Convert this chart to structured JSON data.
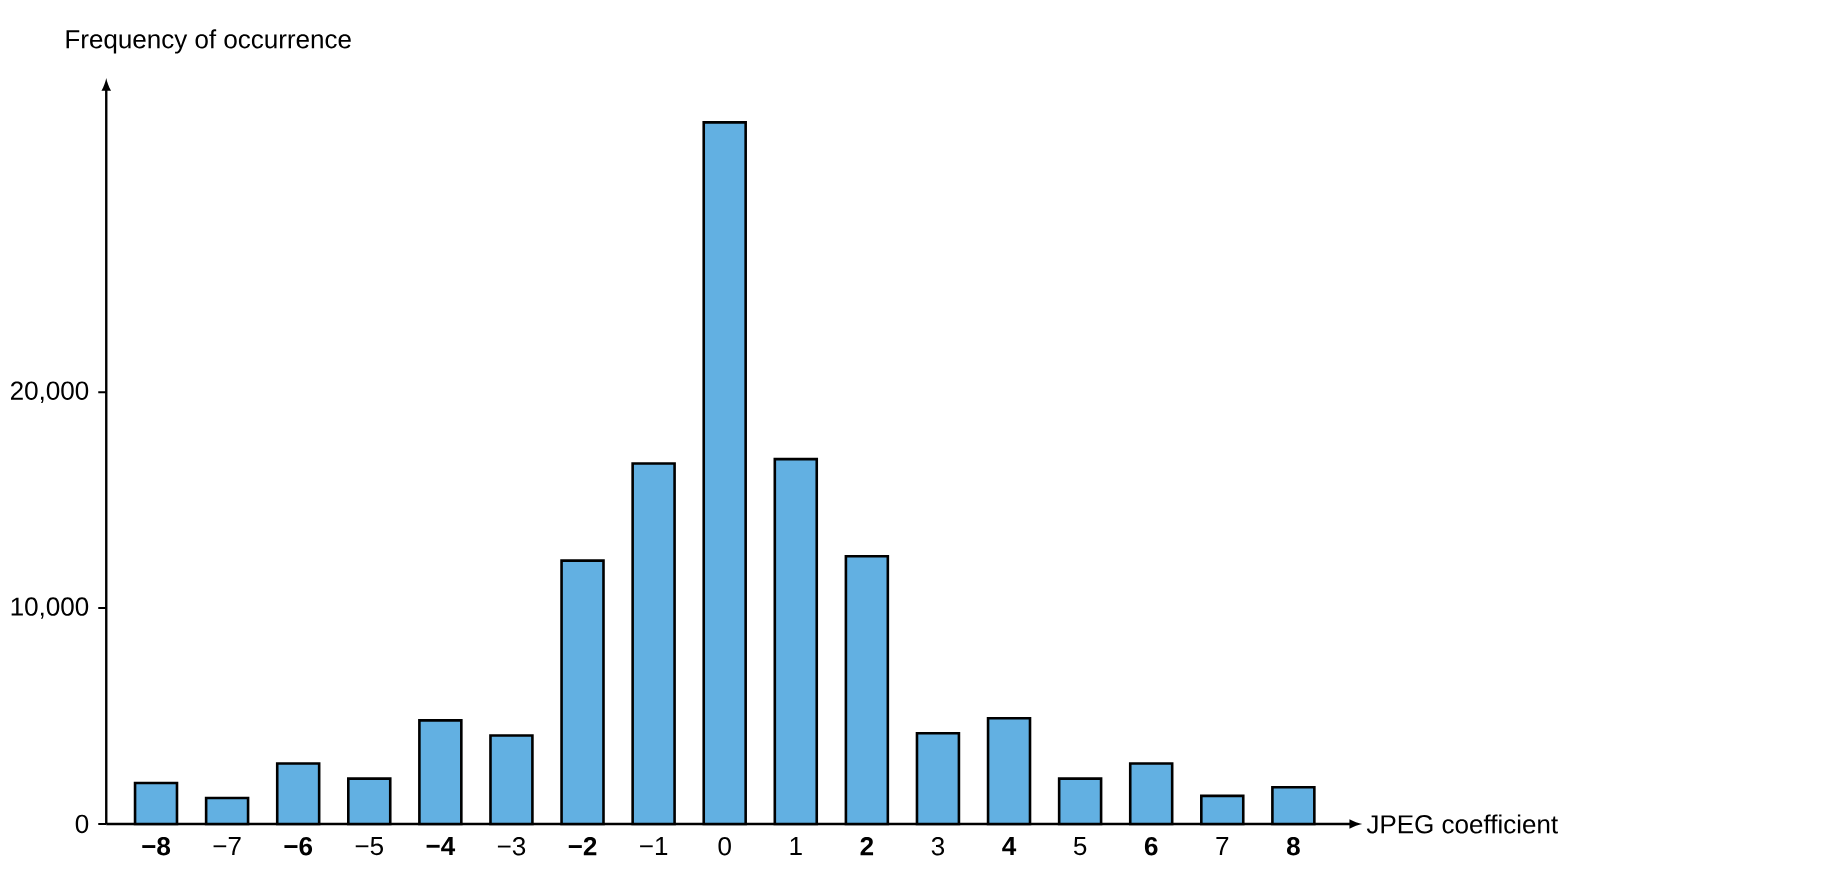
{
  "chart_data": {
    "type": "bar",
    "xlabel": "JPEG coefficient",
    "ylabel": "Frequency of occurrence",
    "categories": [
      "**−8**",
      "−7",
      "**−6**",
      "−5",
      "**−4**",
      "−3",
      "**−2**",
      "−1",
      "0",
      "1",
      "**2**",
      "3",
      "**4**",
      "5",
      "**6**",
      "7",
      "**8**"
    ],
    "values": [
      1900,
      1200,
      2800,
      2100,
      4800,
      4100,
      12200,
      16700,
      32500,
      16900,
      12400,
      4200,
      4900,
      2100,
      2800,
      1300,
      1700
    ],
    "color": "#62b0e2",
    "ylim": [
      0,
      34000
    ],
    "yticks": [
      0,
      {
        "value": 10000,
        "label": "10,000"
      },
      {
        "value": 20000,
        "label": "20,000"
      }
    ],
    "grid": false
  }
}
